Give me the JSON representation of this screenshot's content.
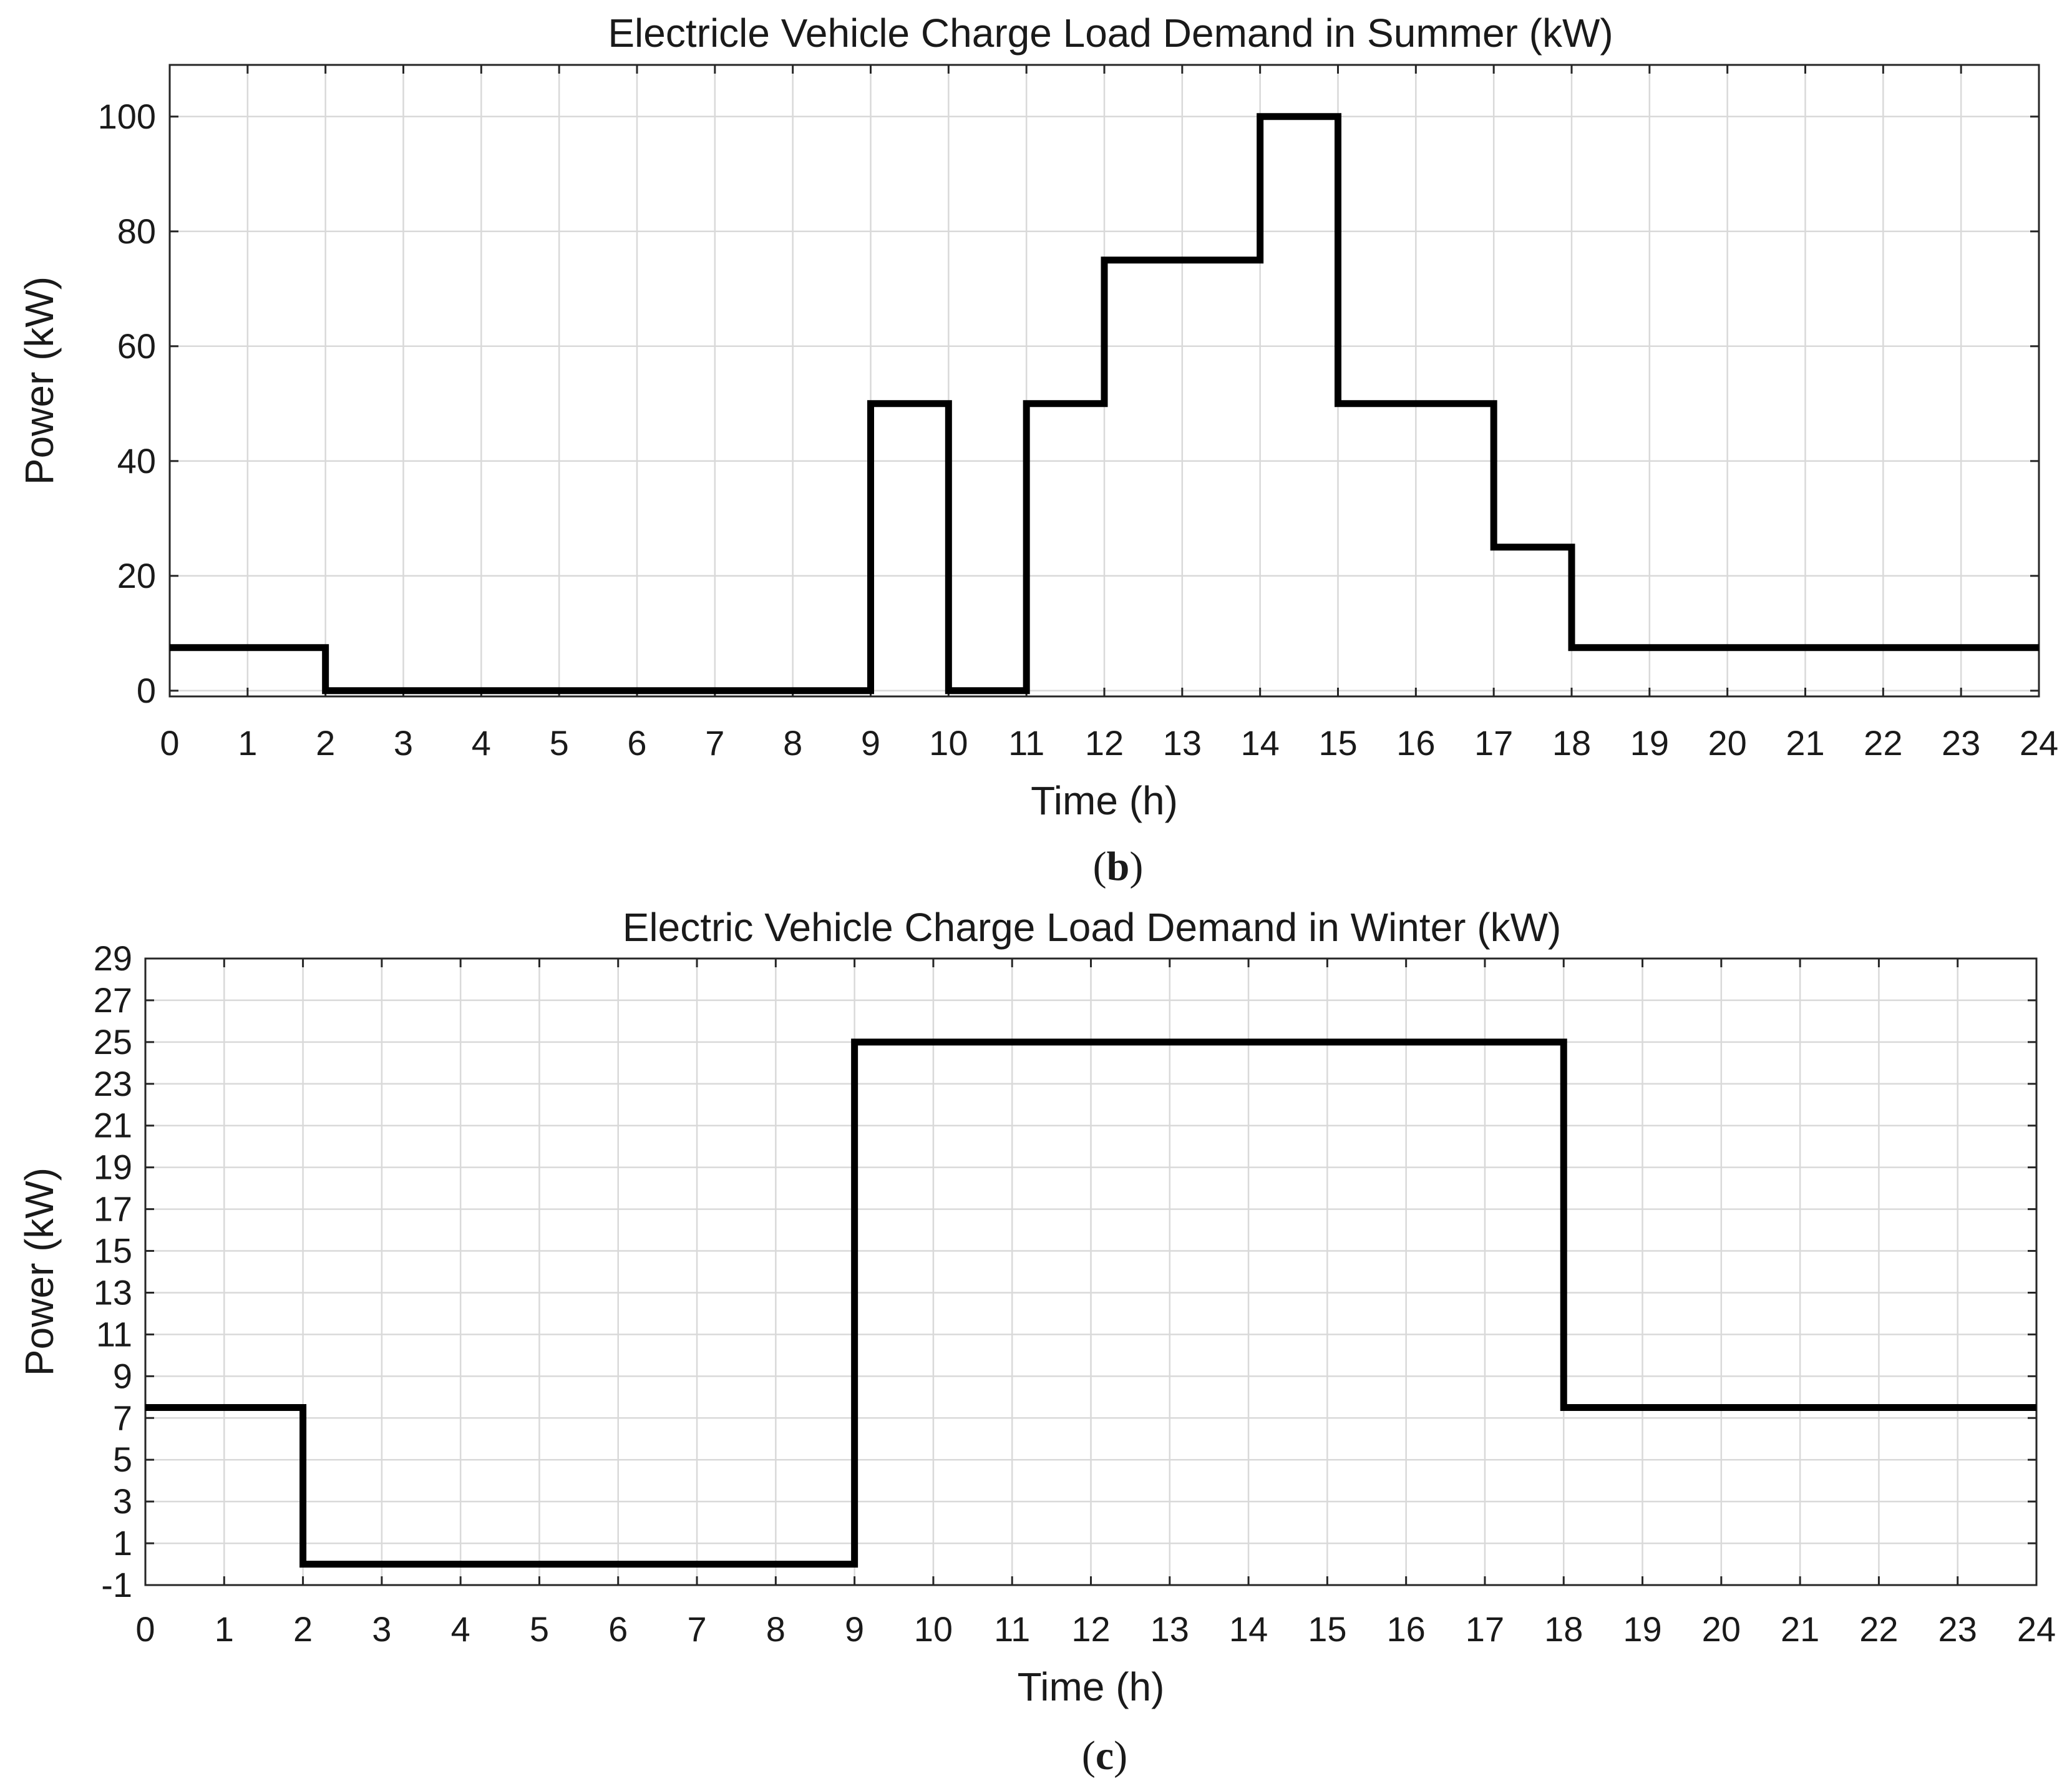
{
  "chart_data": [
    {
      "type": "line",
      "step": "post",
      "title": "Electricle Vehicle Charge Load Demand in Summer (kW)",
      "xlabel": "Time (h)",
      "ylabel": "Power (kW)",
      "xlim": [
        0,
        24
      ],
      "ylim": [
        -1,
        109
      ],
      "xticks": [
        0,
        1,
        2,
        3,
        4,
        5,
        6,
        7,
        8,
        9,
        10,
        11,
        12,
        13,
        14,
        15,
        16,
        17,
        18,
        19,
        20,
        21,
        22,
        23,
        24
      ],
      "yticks": [
        0,
        20,
        40,
        60,
        80,
        100
      ],
      "grid": true,
      "series": [
        {
          "x": [
            0,
            2,
            9,
            10,
            11,
            12,
            14,
            15,
            17,
            18,
            24
          ],
          "y": [
            7.5,
            0,
            50,
            0,
            50,
            75,
            100,
            50,
            25,
            7.5,
            7.5
          ]
        }
      ],
      "panel_label": "b",
      "line_color": "#000000",
      "grid_color": "#d9d9d9"
    },
    {
      "type": "line",
      "step": "post",
      "title": "Electric Vehicle Charge Load Demand in Winter (kW)",
      "xlabel": "Time (h)",
      "ylabel": "Power (kW)",
      "xlim": [
        0,
        24
      ],
      "ylim": [
        -1,
        29
      ],
      "xticks": [
        0,
        1,
        2,
        3,
        4,
        5,
        6,
        7,
        8,
        9,
        10,
        11,
        12,
        13,
        14,
        15,
        16,
        17,
        18,
        19,
        20,
        21,
        22,
        23,
        24
      ],
      "yticks": [
        -1,
        1,
        3,
        5,
        7,
        9,
        11,
        13,
        15,
        17,
        19,
        21,
        23,
        25,
        27,
        29
      ],
      "grid": true,
      "series": [
        {
          "x": [
            0,
            2,
            9,
            18,
            24
          ],
          "y": [
            7.5,
            0,
            25,
            7.5,
            7.5
          ]
        }
      ],
      "panel_label": "c",
      "line_color": "#000000",
      "grid_color": "#d9d9d9"
    }
  ]
}
